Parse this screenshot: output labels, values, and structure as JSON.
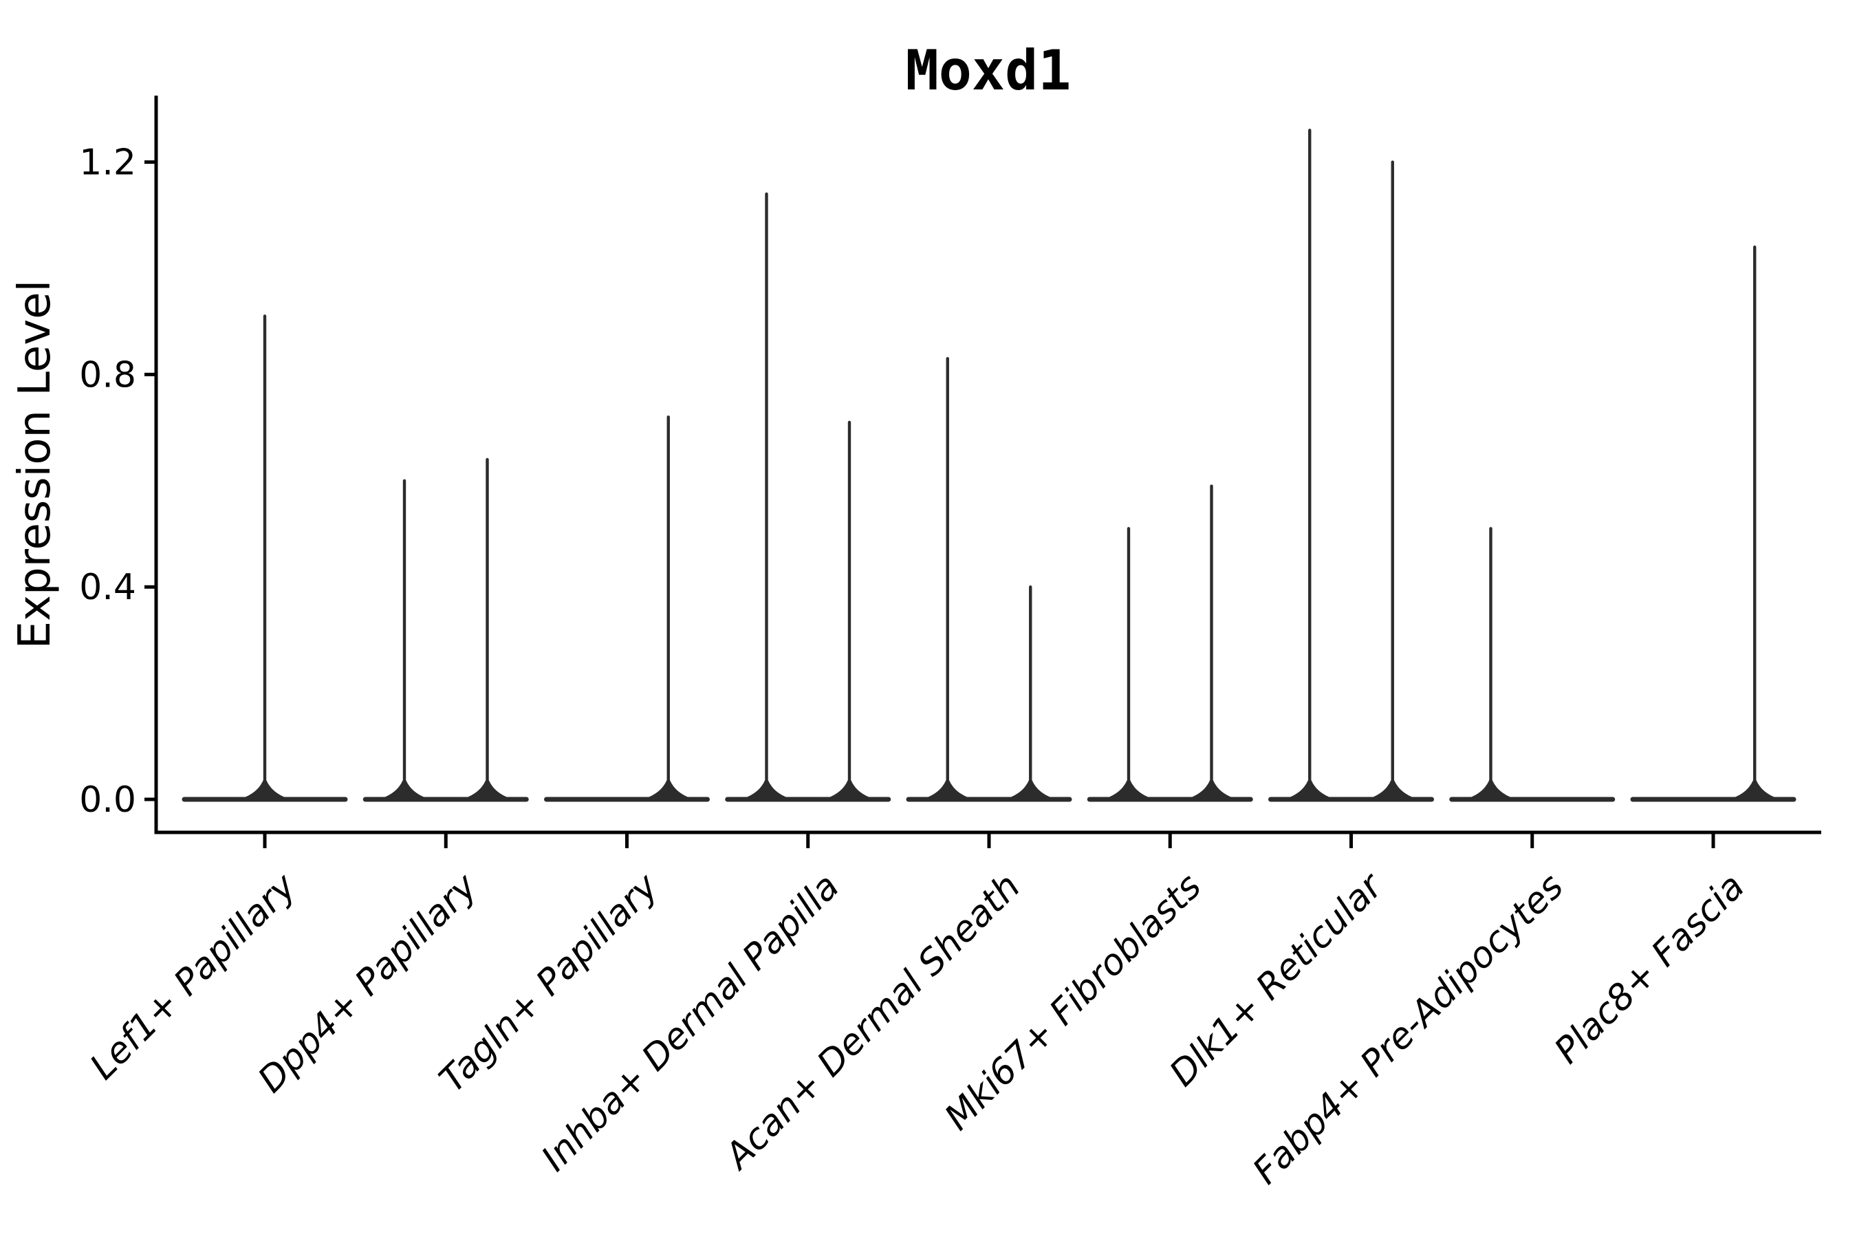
{
  "figure": {
    "title": "Moxd1",
    "background_color": "#ffffff"
  },
  "y_axis": {
    "label": "Expression Level",
    "tick_labels": [
      "0.0",
      "0.4",
      "0.8",
      "1.2"
    ]
  },
  "x_axis": {
    "label": "",
    "tick_labels": [
      "Lef1+ Papillary",
      "Dpp4+ Papillary",
      "Tagln+ Papillary",
      "Inhba+ Dermal Papilla",
      "Acan+ Dermal Sheath",
      "Mki67+ Fibroblasts",
      "Dlk1+ Reticular",
      "Fabp4+ Pre-Adipocytes",
      "Plac8+ Fascia"
    ]
  },
  "chart_data": {
    "type": "violin",
    "title": "Moxd1",
    "xlabel": "",
    "ylabel": "Expression Level",
    "ylim": [
      -0.06,
      1.33
    ],
    "yticks": [
      0.0,
      0.4,
      0.8,
      1.2
    ],
    "ytick_labels": [
      "0.0",
      "0.4",
      "0.8",
      "1.2"
    ],
    "grid": false,
    "legend": "none",
    "description": "Violin plot of Moxd1 expression per fibroblast cell type. Each violin is collapsed flat at expression 0 (most cells zero) with thin density spikes rising to the maximum expression; some categories show two side-by-side (dodged) spikes.",
    "categories": [
      "Lef1+ Papillary",
      "Dpp4+ Papillary",
      "Tagln+ Papillary",
      "Inhba+ Dermal Papilla",
      "Acan+ Dermal Sheath",
      "Mki67+ Fibroblasts",
      "Dlk1+ Reticular",
      "Fabp4+ Pre-Adipocytes",
      "Plac8+ Fascia"
    ],
    "violins": [
      {
        "category": "Lef1+ Papillary",
        "baseline_value": 0.0,
        "spikes": [
          {
            "pos": "center",
            "max": 0.91
          }
        ]
      },
      {
        "category": "Dpp4+ Papillary",
        "baseline_value": 0.0,
        "spikes": [
          {
            "pos": "left",
            "max": 0.6
          },
          {
            "pos": "right",
            "max": 0.64
          }
        ]
      },
      {
        "category": "Tagln+ Papillary",
        "baseline_value": 0.0,
        "spikes": [
          {
            "pos": "right",
            "max": 0.72
          }
        ]
      },
      {
        "category": "Inhba+ Dermal Papilla",
        "baseline_value": 0.0,
        "spikes": [
          {
            "pos": "left",
            "max": 1.14
          },
          {
            "pos": "right",
            "max": 0.71
          }
        ]
      },
      {
        "category": "Acan+ Dermal Sheath",
        "baseline_value": 0.0,
        "spikes": [
          {
            "pos": "left",
            "max": 0.83
          },
          {
            "pos": "right",
            "max": 0.4
          }
        ]
      },
      {
        "category": "Mki67+ Fibroblasts",
        "baseline_value": 0.0,
        "spikes": [
          {
            "pos": "left",
            "max": 0.51
          },
          {
            "pos": "right",
            "max": 0.59
          }
        ]
      },
      {
        "category": "Dlk1+ Reticular",
        "baseline_value": 0.0,
        "spikes": [
          {
            "pos": "left",
            "max": 1.26
          },
          {
            "pos": "right",
            "max": 1.2
          }
        ]
      },
      {
        "category": "Fabp4+ Pre-Adipocytes",
        "baseline_value": 0.0,
        "spikes": [
          {
            "pos": "left",
            "max": 0.51
          }
        ]
      },
      {
        "category": "Plac8+ Fascia",
        "baseline_value": 0.0,
        "spikes": [
          {
            "pos": "right",
            "max": 1.04
          }
        ]
      }
    ],
    "colors": {
      "ink": "#2c2c2c",
      "axis": "#000000",
      "background": "#ffffff"
    }
  }
}
